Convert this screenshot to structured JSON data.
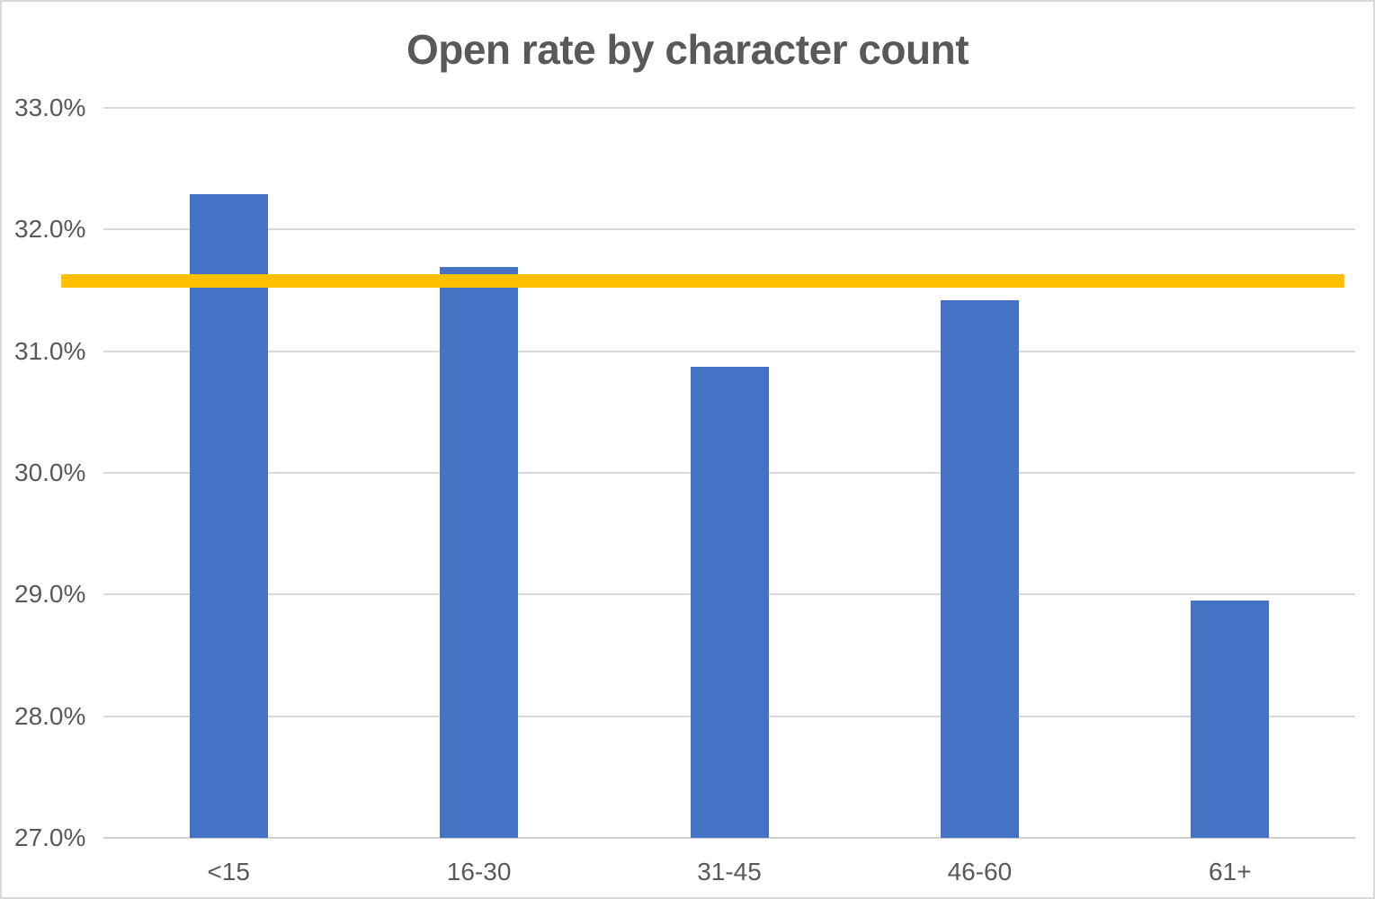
{
  "chart_data": {
    "type": "bar",
    "title": "Open rate by character count",
    "categories": [
      "<15",
      "16-30",
      "31-45",
      "46-60",
      "61+"
    ],
    "values": [
      32.29,
      31.69,
      30.87,
      31.42,
      28.95
    ],
    "value_unit": "percent",
    "series_name": "Open rate",
    "average_line": {
      "value": 31.58
    },
    "xlabel": "",
    "ylabel": "",
    "ylim": [
      27.0,
      33.0
    ],
    "ytick_step": 1.0,
    "ytick_labels": [
      "33.0%",
      "32.0%",
      "31.0%",
      "30.0%",
      "29.0%",
      "28.0%",
      "27.0%"
    ],
    "grid": true,
    "legend_position": "none",
    "colors": {
      "bar": "#4472C4",
      "average_line": "#FFC000",
      "gridline": "#D9D9D9",
      "axis_line": "#CFCFCF",
      "text": "#595959",
      "frame_border": "#D9D9D9",
      "background": "#FFFFFF"
    }
  }
}
